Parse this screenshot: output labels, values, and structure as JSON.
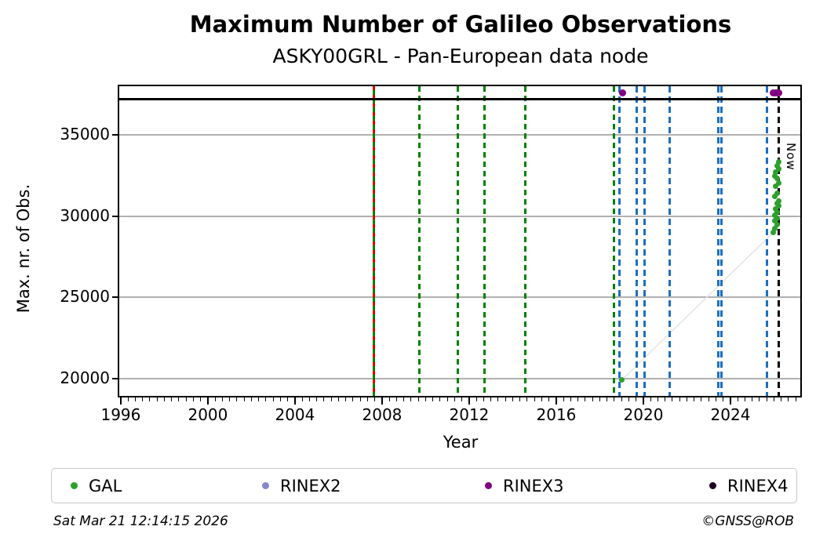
{
  "title": "Maximum Number of Galileo Observations",
  "subtitle": "ASKY00GRL - Pan-European data node",
  "footer": {
    "timestamp": "Sat Mar 21 12:14:15 2026",
    "credit": "©GNSS@ROB"
  },
  "legend": {
    "items": [
      {
        "label": "GAL",
        "color": "#2ca02c"
      },
      {
        "label": "RINEX2",
        "color": "#8787cd"
      },
      {
        "label": "RINEX3",
        "color": "#800080"
      },
      {
        "label": "RINEX4",
        "color": "#1c0022"
      }
    ]
  },
  "colors": {
    "gal_dot": "#2ca02c",
    "green_line": "#008000",
    "blue_line": "#1c6fbf",
    "red_dash": "#dd0000",
    "rinex3_dot": "#800080",
    "grid": "#b0b0b0",
    "now_line": "#000000",
    "connector": "#e4e4e4"
  },
  "chart_data": {
    "type": "scatter",
    "title": "Maximum Number of Galileo Observations",
    "subtitle": "ASKY00GRL - Pan-European data node",
    "xlabel": "Year",
    "ylabel": "Max. nr. of Obs.",
    "now_label": "Now",
    "xlim": [
      1995.93,
      2027.28
    ],
    "ylim": [
      18860,
      37150
    ],
    "xticks": [
      1996,
      2000,
      2004,
      2008,
      2012,
      2016,
      2020,
      2024
    ],
    "x_minor_step": 0.3333,
    "yticks": [
      20000,
      25000,
      30000,
      35000
    ],
    "grid": "horizontal",
    "legend_position": "bottom",
    "series": [
      {
        "name": "GAL",
        "color": "#2ca02c",
        "points": [
          [
            2019.02,
            19950
          ],
          [
            2025.95,
            28970
          ],
          [
            2026.02,
            29210
          ],
          [
            2026.13,
            29450
          ],
          [
            2026.05,
            29690
          ],
          [
            2026.13,
            29840
          ],
          [
            2026.05,
            30030
          ],
          [
            2026.16,
            30220
          ],
          [
            2026.09,
            30415
          ],
          [
            2026.2,
            30610
          ],
          [
            2026.13,
            30750
          ],
          [
            2026.2,
            30895
          ],
          [
            2026.05,
            31185
          ],
          [
            2026.16,
            31375
          ],
          [
            2026.09,
            31810
          ],
          [
            2026.2,
            32000
          ],
          [
            2026.13,
            32290
          ],
          [
            2026.05,
            32435
          ],
          [
            2026.09,
            32675
          ],
          [
            2026.2,
            32870
          ],
          [
            2026.16,
            33060
          ],
          [
            2026.23,
            33300
          ]
        ]
      }
    ],
    "top_strip_events": {
      "name": "RINEX3",
      "color": "#800080",
      "years": [
        2019.03,
        2025.98,
        2026.06,
        2026.13,
        2026.2
      ]
    },
    "vlines": {
      "first_obs": {
        "x": 2007.63,
        "style": "solid-green-red-dashed"
      },
      "green_dashed": [
        2009.73,
        2011.47,
        2012.7,
        2014.59,
        2018.65
      ],
      "blue_dashed": [
        2018.89,
        2019.68,
        2020.06,
        2021.2,
        2023.46,
        2023.58,
        2025.66
      ],
      "now": {
        "x": 2026.22
      }
    },
    "connector_line": [
      [
        2019.02,
        19950
      ],
      [
        2025.95,
        28970
      ]
    ]
  }
}
